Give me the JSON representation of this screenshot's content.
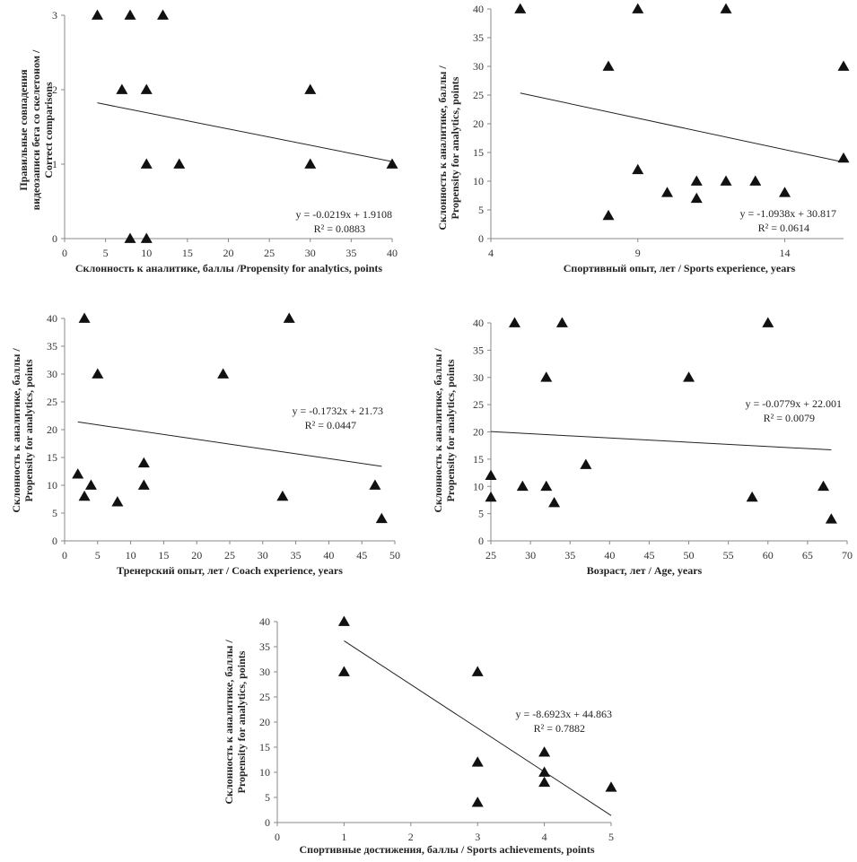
{
  "chart_data": [
    {
      "type": "scatter",
      "title": "",
      "xlabel": "Склонность к аналитике, баллы /Propensity for analytics, points",
      "ylabel": [
        "Правильные совпадения",
        "видеозаписи бега со скелетоном /",
        "Correct comparisons"
      ],
      "xlim": [
        0,
        40
      ],
      "ylim": [
        0,
        3
      ],
      "xticks": [
        0,
        5,
        10,
        15,
        20,
        25,
        30,
        35,
        40
      ],
      "yticks": [
        0,
        1,
        2,
        3
      ],
      "grid": false,
      "marker": "triangle",
      "points": [
        [
          4,
          3
        ],
        [
          8,
          3
        ],
        [
          12,
          3
        ],
        [
          7,
          2
        ],
        [
          10,
          2
        ],
        [
          30,
          2
        ],
        [
          10,
          1
        ],
        [
          14,
          1
        ],
        [
          30,
          1
        ],
        [
          40,
          1
        ],
        [
          8,
          0
        ],
        [
          10,
          0
        ]
      ],
      "trendline": {
        "slope": -0.0219,
        "intercept": 1.9108,
        "x_range": [
          4,
          40
        ]
      },
      "equation": "y = -0.0219x + 1.9108",
      "r2": "R² = 0.0883",
      "annotation_position": "bottom-right"
    },
    {
      "type": "scatter",
      "title": "",
      "xlabel": "Спортивный опыт, лет / Sports experience, years",
      "ylabel": [
        "Склонность к аналитике, баллы /",
        "Propensity for analytics, points"
      ],
      "xlim": [
        4,
        16
      ],
      "ylim": [
        0,
        40
      ],
      "xticks": [
        4,
        9,
        14
      ],
      "yticks": [
        0,
        5,
        10,
        15,
        20,
        25,
        30,
        35,
        40
      ],
      "grid": false,
      "marker": "triangle",
      "points": [
        [
          5,
          40
        ],
        [
          9,
          40
        ],
        [
          12,
          40
        ],
        [
          8,
          30
        ],
        [
          16,
          30
        ],
        [
          16,
          14
        ],
        [
          9,
          12
        ],
        [
          11,
          10
        ],
        [
          12,
          10
        ],
        [
          13,
          10
        ],
        [
          10,
          8
        ],
        [
          14,
          8
        ],
        [
          11,
          7
        ],
        [
          8,
          4
        ]
      ],
      "trendline": {
        "slope": -1.0938,
        "intercept": 30.817,
        "x_range": [
          5,
          16
        ]
      },
      "equation": "y = -1.0938x + 30.817",
      "r2": "R² = 0.0614",
      "annotation_position": "bottom-right"
    },
    {
      "type": "scatter",
      "title": "",
      "xlabel": "Тренерский опыт, лет / Coach experience, years",
      "ylabel": [
        "Склонность к аналитике, баллы /",
        "Propensity for analytics, points"
      ],
      "xlim": [
        0,
        50
      ],
      "ylim": [
        0,
        40
      ],
      "xticks": [
        0,
        5,
        10,
        15,
        20,
        25,
        30,
        35,
        40,
        45,
        50
      ],
      "yticks": [
        0,
        5,
        10,
        15,
        20,
        25,
        30,
        35,
        40
      ],
      "grid": false,
      "marker": "triangle",
      "points": [
        [
          3,
          40
        ],
        [
          34,
          40
        ],
        [
          5,
          30
        ],
        [
          24,
          30
        ],
        [
          12,
          14
        ],
        [
          2,
          12
        ],
        [
          4,
          10
        ],
        [
          12,
          10
        ],
        [
          47,
          10
        ],
        [
          3,
          8
        ],
        [
          33,
          8
        ],
        [
          8,
          7
        ],
        [
          48,
          4
        ]
      ],
      "trendline": {
        "slope": -0.1732,
        "intercept": 21.73,
        "x_range": [
          2,
          48
        ]
      },
      "equation": "y = -0.1732x + 21.73",
      "r2": "R² = 0.0447",
      "annotation_position": "top-right"
    },
    {
      "type": "scatter",
      "title": "",
      "xlabel": "Возраст, лет /  Age, years",
      "ylabel": [
        "Склонность к аналитике, баллы /",
        "Propensity for analytics, points"
      ],
      "xlim": [
        25,
        70
      ],
      "ylim": [
        0,
        40
      ],
      "xticks": [
        25,
        30,
        35,
        40,
        45,
        50,
        55,
        60,
        65,
        70
      ],
      "yticks": [
        0,
        5,
        10,
        15,
        20,
        25,
        30,
        35,
        40
      ],
      "grid": false,
      "marker": "triangle",
      "points": [
        [
          28,
          40
        ],
        [
          34,
          40
        ],
        [
          60,
          40
        ],
        [
          32,
          30
        ],
        [
          50,
          30
        ],
        [
          37,
          14
        ],
        [
          25,
          12
        ],
        [
          29,
          10
        ],
        [
          32,
          10
        ],
        [
          67,
          10
        ],
        [
          25,
          8
        ],
        [
          58,
          8
        ],
        [
          33,
          7
        ],
        [
          68,
          4
        ]
      ],
      "trendline": {
        "slope": -0.0779,
        "intercept": 22.001,
        "x_range": [
          25,
          68
        ]
      },
      "equation": "y = -0.0779x + 22.001",
      "r2": "R² = 0.0079",
      "annotation_position": "top-right"
    },
    {
      "type": "scatter",
      "title": "",
      "xlabel": "Спортивные достижения, баллы / Sports achievements, points",
      "ylabel": [
        "Склонность к аналитике, баллы /",
        "Propensity for analytics, points"
      ],
      "xlim": [
        0,
        5
      ],
      "ylim": [
        0,
        40
      ],
      "xticks": [
        0,
        1,
        2,
        3,
        4,
        5
      ],
      "yticks": [
        0,
        5,
        10,
        15,
        20,
        25,
        30,
        35,
        40
      ],
      "grid": false,
      "marker": "triangle",
      "points": [
        [
          1,
          40
        ],
        [
          1,
          30
        ],
        [
          3,
          30
        ],
        [
          3,
          12
        ],
        [
          3,
          4
        ],
        [
          4,
          14
        ],
        [
          4,
          10
        ],
        [
          4,
          8
        ],
        [
          5,
          7
        ]
      ],
      "trendline": {
        "slope": -8.6923,
        "intercept": 44.863,
        "x_range": [
          1,
          5
        ]
      },
      "equation": "y = -8.6923x + 44.863",
      "r2": "R² = 0.7882",
      "annotation_position": "middle-right"
    }
  ]
}
